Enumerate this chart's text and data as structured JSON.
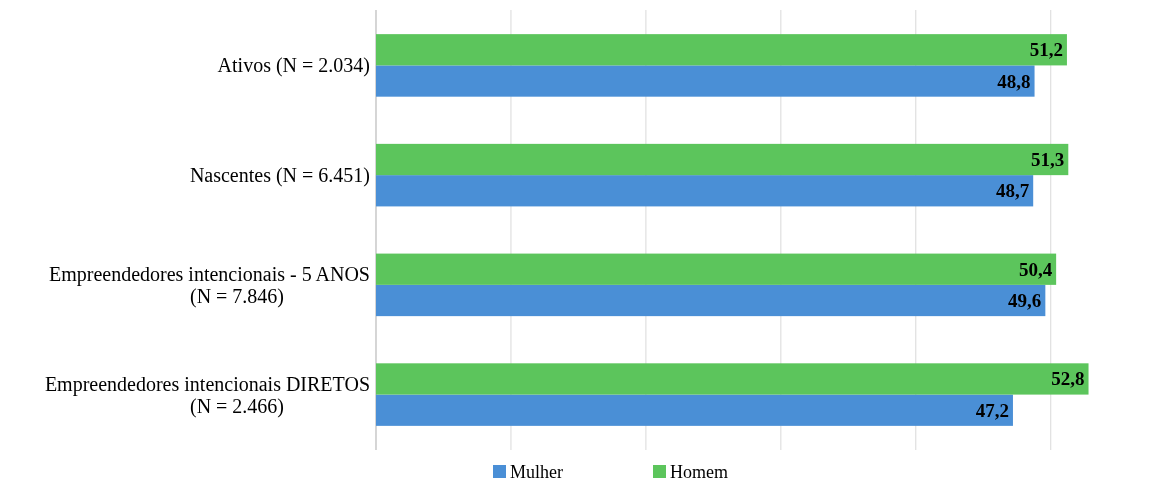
{
  "chart_data": {
    "type": "bar",
    "orientation": "horizontal",
    "categories": [
      "Ativos (N = 2.034)",
      "Nascentes (N = 6.451)",
      "Empreendedores intencionais - 5 ANOS\n(N = 7.846)",
      "Empreendedores intencionais DIRETOS\n(N = 2.466)"
    ],
    "series": [
      {
        "name": "Mulher",
        "color": "#4a8fd6",
        "values": [
          48.8,
          48.7,
          49.6,
          47.2
        ],
        "value_labels": [
          "48,8",
          "48,7",
          "49,6",
          "47,2"
        ]
      },
      {
        "name": "Homem",
        "color": "#5cc55c",
        "values": [
          51.2,
          51.3,
          50.4,
          52.8
        ],
        "value_labels": [
          "51,2",
          "51,3",
          "50,4",
          "52,8"
        ]
      }
    ],
    "tick_labels": "y",
    "grid": "x",
    "legend": "bottom"
  }
}
